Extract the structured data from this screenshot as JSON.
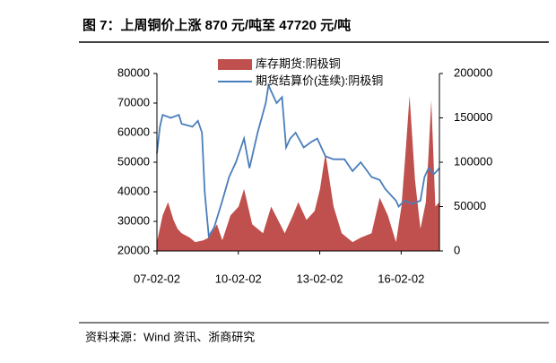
{
  "chart_data": {
    "type": "area_line",
    "title": "图 7：上周铜价上涨 870 元/吨至 47720 元/吨",
    "source": "资料来源：Wind 资讯、浙商研究",
    "xlim": [
      2007.09,
      2017.5
    ],
    "xticks": [
      {
        "value": 2007.09,
        "label": "07-02-02"
      },
      {
        "value": 2010.09,
        "label": "10-02-02"
      },
      {
        "value": 2013.09,
        "label": "13-02-02"
      },
      {
        "value": 2016.09,
        "label": "16-02-02"
      }
    ],
    "ylim": [
      20000,
      80000
    ],
    "yticks": [
      20000,
      30000,
      40000,
      50000,
      60000,
      70000,
      80000
    ],
    "y2lim": [
      0,
      200000
    ],
    "y2ticks": [
      0,
      50000,
      100000,
      150000,
      200000
    ],
    "series": [
      {
        "name": "库存期货:阴极铜",
        "kind": "area",
        "axis": "y2",
        "color": "#c0504d",
        "x": [
          2007.09,
          2007.3,
          2007.5,
          2007.7,
          2007.85,
          2008.0,
          2008.3,
          2008.5,
          2008.8,
          2009.0,
          2009.3,
          2009.5,
          2009.8,
          2010.1,
          2010.3,
          2010.6,
          2011.0,
          2011.3,
          2011.8,
          2012.1,
          2012.3,
          2012.6,
          2012.9,
          2013.1,
          2013.3,
          2013.6,
          2013.9,
          2014.3,
          2014.6,
          2015.0,
          2015.3,
          2015.6,
          2015.9,
          2016.1,
          2016.25,
          2016.4,
          2016.6,
          2016.8,
          2017.0,
          2017.1,
          2017.2,
          2017.35,
          2017.5
        ],
        "values": [
          10000,
          40000,
          55000,
          35000,
          25000,
          20000,
          15000,
          10000,
          12000,
          15000,
          30000,
          12000,
          40000,
          50000,
          70000,
          30000,
          20000,
          50000,
          20000,
          40000,
          55000,
          35000,
          45000,
          70000,
          110000,
          50000,
          20000,
          10000,
          15000,
          20000,
          60000,
          40000,
          10000,
          50000,
          110000,
          175000,
          80000,
          25000,
          55000,
          110000,
          170000,
          50000,
          55000
        ]
      },
      {
        "name": "期货结算价(连续):阴极铜",
        "kind": "line",
        "axis": "y",
        "color": "#4a7ebb",
        "x": [
          2007.09,
          2007.2,
          2007.3,
          2007.6,
          2007.9,
          2008.0,
          2008.4,
          2008.6,
          2008.75,
          2008.85,
          2008.95,
          2009.0,
          2009.2,
          2009.5,
          2009.75,
          2010.0,
          2010.3,
          2010.5,
          2010.8,
          2011.1,
          2011.2,
          2011.5,
          2011.7,
          2011.85,
          2012.0,
          2012.2,
          2012.5,
          2012.8,
          2013.0,
          2013.3,
          2013.6,
          2014.0,
          2014.3,
          2014.6,
          2015.0,
          2015.3,
          2015.5,
          2015.9,
          2016.0,
          2016.2,
          2016.5,
          2016.8,
          2016.95,
          2017.1,
          2017.3,
          2017.5
        ],
        "values": [
          53000,
          62000,
          66000,
          65000,
          66000,
          63000,
          62000,
          64000,
          60000,
          40000,
          30000,
          25000,
          28000,
          37000,
          45000,
          50000,
          58000,
          48000,
          60000,
          70000,
          76000,
          70000,
          72000,
          55000,
          58000,
          60000,
          55000,
          57000,
          58000,
          52000,
          51000,
          51000,
          47000,
          50000,
          45000,
          44000,
          41000,
          37000,
          35000,
          37000,
          36000,
          37000,
          45000,
          48000,
          46000,
          48000
        ]
      }
    ]
  }
}
